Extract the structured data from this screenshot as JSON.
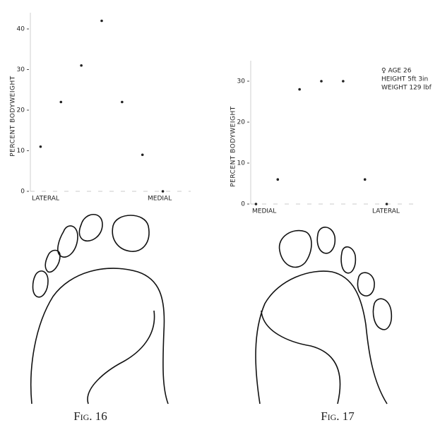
{
  "chart_data": [
    {
      "type": "scatter",
      "title": "Fig. 16",
      "ylabel": "PERCENT BODYWEIGHT",
      "x_start_label": "LATERAL",
      "x_end_label": "MEDIAL",
      "categories": [
        null,
        null,
        null,
        null,
        null,
        null,
        null
      ],
      "values": [
        11,
        22,
        31,
        42,
        22,
        9,
        0
      ],
      "ylim": [
        0,
        44
      ],
      "yticks": [
        0,
        10,
        20,
        30,
        40
      ],
      "color": "#222222"
    },
    {
      "type": "scatter",
      "title": "Fig. 17",
      "ylabel": "PERCENT BODYWEIGHT",
      "x_start_label": "MEDIAL",
      "x_end_label": "LATERAL",
      "annotations": [
        "♀ AGE 26",
        "HEIGHT 5ft 3in",
        "WEIGHT 129 lbf"
      ],
      "categories": [
        null,
        null,
        null,
        null,
        null,
        null,
        null
      ],
      "values": [
        0,
        6,
        28,
        30,
        30,
        6,
        0
      ],
      "ylim": [
        0,
        35
      ],
      "yticks": [
        0,
        10,
        20,
        30
      ],
      "color": "#222222"
    }
  ]
}
